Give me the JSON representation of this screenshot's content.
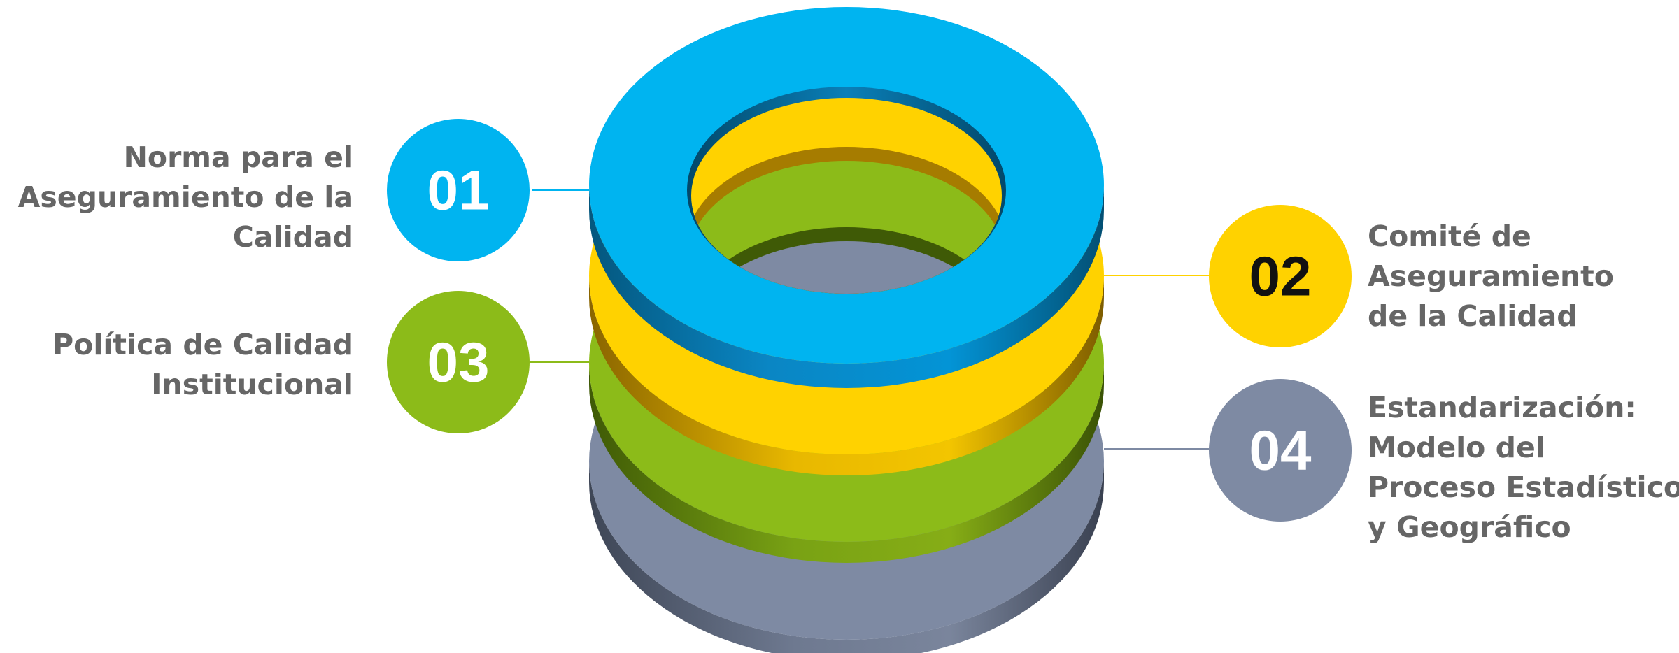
{
  "items": [
    {
      "number": "01",
      "color": "#00B4F0",
      "number_color": "#FFFFFF",
      "lines": [
        "Norma para el",
        "Aseguramiento de la",
        "Calidad"
      ]
    },
    {
      "number": "02",
      "color": "#FFD200",
      "number_color": "#111111",
      "lines": [
        "Comité de",
        "Aseguramiento",
        "de la Calidad"
      ]
    },
    {
      "number": "03",
      "color": "#8CBB19",
      "number_color": "#FFFFFF",
      "lines": [
        "Política de Calidad",
        "Institucional"
      ]
    },
    {
      "number": "04",
      "color": "#7E8AA3",
      "number_color": "#FFFFFF",
      "lines": [
        "Estandarización:",
        "Modelo del",
        "Proceso Estadístico",
        "y Geográfico"
      ]
    }
  ],
  "label_color": "#666666"
}
